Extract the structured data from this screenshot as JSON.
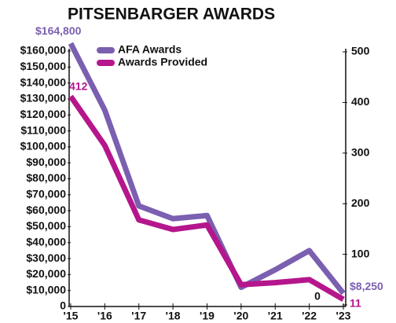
{
  "chart_data": {
    "type": "line",
    "title": "PITSENBARGER AWARDS",
    "categories": [
      "'15",
      "'16",
      "'17",
      "'18",
      "'19",
      "'20",
      "'21",
      "'22",
      "'23"
    ],
    "series": [
      {
        "name": "AFA Awards",
        "color": "#7b5fb0",
        "values": [
          164800,
          123000,
          63000,
          55000,
          57000,
          12000,
          23000,
          35000,
          8250
        ],
        "value_labels": [
          "$164,800",
          null,
          null,
          null,
          null,
          null,
          null,
          null,
          "$8,250"
        ]
      },
      {
        "name": "Awards Provided",
        "color": "#b5168c",
        "axis": "y2",
        "values": [
          412,
          315,
          168,
          149,
          158,
          40,
          44,
          50,
          11
        ]
      }
    ],
    "ylim": [
      0,
      160000
    ],
    "yticks": [
      0,
      {
        "value": 10000,
        "label": "$10,000"
      },
      {
        "value": 20000,
        "label": "$20,000"
      },
      {
        "value": 30000,
        "label": "$30,000"
      },
      {
        "value": 40000,
        "label": "$40,000"
      },
      {
        "value": 50000,
        "label": "$50,000"
      },
      {
        "value": 60000,
        "label": "$60,000"
      },
      {
        "value": 70000,
        "label": "$70,000"
      },
      {
        "value": 80000,
        "label": "$80,000"
      },
      {
        "value": 90000,
        "label": "$90,000"
      },
      {
        "value": 100000,
        "label": "$100,000"
      },
      {
        "value": 110000,
        "label": "$110,000"
      },
      {
        "value": 120000,
        "label": "$120,000"
      },
      {
        "value": 130000,
        "label": "$130,000"
      },
      {
        "value": 140000,
        "label": "$140,000"
      },
      {
        "value": 150000,
        "label": "$150,000"
      },
      {
        "value": 160000,
        "label": "$160,000"
      }
    ],
    "y2lim": [
      0,
      500
    ],
    "y2ticks": [
      0,
      100,
      200,
      300,
      400,
      500
    ],
    "legend": "upper left"
  }
}
